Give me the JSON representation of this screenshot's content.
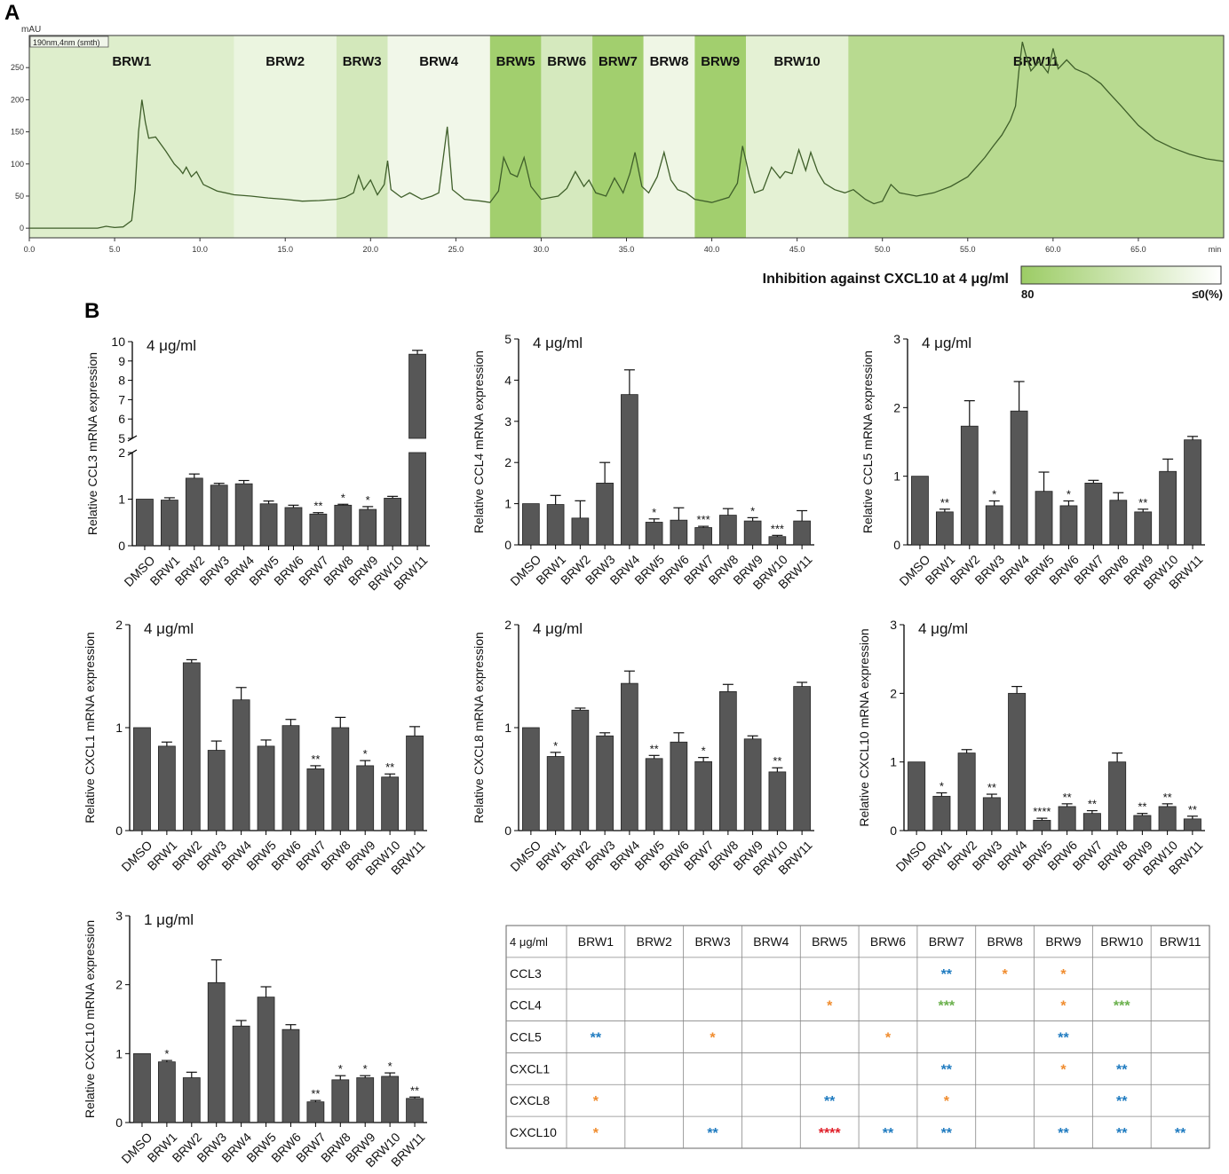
{
  "panel_labels": [
    "A",
    "B"
  ],
  "colors": {
    "bar": "#575757",
    "trace": "#3f5f2a",
    "green_dark": "#9ccc65",
    "green_light": "#f4f9ee",
    "sig_blue": "#1f7bc0",
    "sig_orange": "#f08c2e",
    "sig_green": "#6ab04c",
    "sig_red": "#e0202a"
  },
  "chart_data": [
    {
      "id": "chromatogram",
      "type": "line",
      "ylabel": "mAU",
      "xlabel": "min",
      "detector_label": "190nm,4nm (smth)",
      "xlim": [
        0,
        70
      ],
      "ylim": [
        -15,
        300
      ],
      "x_ticks": [
        "0.0",
        "5.0",
        "10.0",
        "15.0",
        "20.0",
        "25.0",
        "30.0",
        "35.0",
        "40.0",
        "45.0",
        "50.0",
        "55.0",
        "60.0",
        "65.0"
      ],
      "y_ticks": [
        "0",
        "50",
        "100",
        "150",
        "200",
        "250"
      ],
      "fractions": [
        {
          "name": "BRW1",
          "start": 0,
          "end": 12,
          "inhibition": 20
        },
        {
          "name": "BRW2",
          "start": 12,
          "end": 18,
          "inhibition": 8
        },
        {
          "name": "BRW3",
          "start": 18,
          "end": 21,
          "inhibition": 30
        },
        {
          "name": "BRW4",
          "start": 21,
          "end": 27,
          "inhibition": 3
        },
        {
          "name": "BRW5",
          "start": 27,
          "end": 30,
          "inhibition": 75
        },
        {
          "name": "BRW6",
          "start": 30,
          "end": 33,
          "inhibition": 28
        },
        {
          "name": "BRW7",
          "start": 33,
          "end": 36,
          "inhibition": 75
        },
        {
          "name": "BRW8",
          "start": 36,
          "end": 39,
          "inhibition": 5
        },
        {
          "name": "BRW9",
          "start": 39,
          "end": 42,
          "inhibition": 75
        },
        {
          "name": "BRW10",
          "start": 42,
          "end": 48,
          "inhibition": 15
        },
        {
          "name": "BRW11",
          "start": 48,
          "end": 70,
          "inhibition": 55
        }
      ],
      "trace": [
        [
          0,
          0
        ],
        [
          2,
          0
        ],
        [
          4,
          0
        ],
        [
          4.5,
          3
        ],
        [
          5,
          1
        ],
        [
          5.5,
          2
        ],
        [
          6,
          12
        ],
        [
          6.2,
          60
        ],
        [
          6.4,
          150
        ],
        [
          6.6,
          200
        ],
        [
          6.8,
          165
        ],
        [
          7,
          140
        ],
        [
          7.4,
          142
        ],
        [
          8,
          120
        ],
        [
          8.5,
          100
        ],
        [
          8.8,
          92
        ],
        [
          9,
          85
        ],
        [
          9.2,
          95
        ],
        [
          9.5,
          80
        ],
        [
          9.8,
          88
        ],
        [
          10.2,
          68
        ],
        [
          11,
          58
        ],
        [
          12,
          52
        ],
        [
          13,
          50
        ],
        [
          14,
          47
        ],
        [
          15,
          45
        ],
        [
          16,
          42
        ],
        [
          17,
          43
        ],
        [
          18,
          45
        ],
        [
          18.5,
          48
        ],
        [
          19,
          55
        ],
        [
          19.3,
          82
        ],
        [
          19.6,
          60
        ],
        [
          20,
          75
        ],
        [
          20.4,
          52
        ],
        [
          20.8,
          68
        ],
        [
          21,
          105
        ],
        [
          21.2,
          60
        ],
        [
          21.8,
          48
        ],
        [
          22.3,
          55
        ],
        [
          23,
          45
        ],
        [
          23.6,
          50
        ],
        [
          24,
          55
        ],
        [
          24.5,
          158
        ],
        [
          24.8,
          60
        ],
        [
          25.5,
          45
        ],
        [
          26.5,
          42
        ],
        [
          27,
          40
        ],
        [
          27.5,
          58
        ],
        [
          27.8,
          110
        ],
        [
          28.2,
          85
        ],
        [
          28.6,
          80
        ],
        [
          29,
          110
        ],
        [
          29.4,
          65
        ],
        [
          30,
          45
        ],
        [
          30.6,
          48
        ],
        [
          31,
          50
        ],
        [
          31.5,
          62
        ],
        [
          32,
          88
        ],
        [
          32.5,
          65
        ],
        [
          32.8,
          75
        ],
        [
          33.2,
          55
        ],
        [
          33.8,
          50
        ],
        [
          34.3,
          78
        ],
        [
          34.8,
          55
        ],
        [
          35.2,
          85
        ],
        [
          35.5,
          118
        ],
        [
          35.9,
          65
        ],
        [
          36.3,
          55
        ],
        [
          36.8,
          80
        ],
        [
          37.2,
          118
        ],
        [
          37.6,
          75
        ],
        [
          38,
          60
        ],
        [
          38.5,
          55
        ],
        [
          39,
          45
        ],
        [
          40,
          40
        ],
        [
          41,
          48
        ],
        [
          41.5,
          70
        ],
        [
          41.8,
          128
        ],
        [
          42.2,
          82
        ],
        [
          42.5,
          55
        ],
        [
          43,
          60
        ],
        [
          43.5,
          95
        ],
        [
          44,
          78
        ],
        [
          44.3,
          88
        ],
        [
          44.7,
          85
        ],
        [
          45.1,
          122
        ],
        [
          45.5,
          90
        ],
        [
          45.8,
          118
        ],
        [
          46.2,
          88
        ],
        [
          46.6,
          70
        ],
        [
          47.2,
          60
        ],
        [
          47.8,
          55
        ],
        [
          48.3,
          60
        ],
        [
          49,
          45
        ],
        [
          49.5,
          38
        ],
        [
          50,
          42
        ],
        [
          50.5,
          68
        ],
        [
          51,
          55
        ],
        [
          52,
          50
        ],
        [
          53,
          55
        ],
        [
          54,
          65
        ],
        [
          55,
          80
        ],
        [
          55.5,
          95
        ],
        [
          56,
          110
        ],
        [
          56.5,
          128
        ],
        [
          57,
          145
        ],
        [
          57.5,
          168
        ],
        [
          57.8,
          190
        ],
        [
          58,
          245
        ],
        [
          58.2,
          290
        ],
        [
          58.4,
          270
        ],
        [
          58.7,
          245
        ],
        [
          59.2,
          260
        ],
        [
          59.7,
          242
        ],
        [
          60,
          280
        ],
        [
          60.3,
          248
        ],
        [
          60.8,
          262
        ],
        [
          61.3,
          248
        ],
        [
          62,
          240
        ],
        [
          62.8,
          225
        ],
        [
          63.3,
          210
        ],
        [
          64,
          190
        ],
        [
          65,
          160
        ],
        [
          66,
          138
        ],
        [
          67,
          125
        ],
        [
          68,
          115
        ],
        [
          69,
          108
        ],
        [
          70,
          104
        ]
      ]
    },
    {
      "id": "ccl3-4ug",
      "type": "bar",
      "annotation": "4 μg/ml",
      "ylabel": "Relative CCL3 mRNA expression",
      "categories": [
        "DMSO",
        "BRW1",
        "BRW2",
        "BRW3",
        "BRW4",
        "BRW5",
        "BRW6",
        "BRW7",
        "BRW8",
        "BRW9",
        "BRW10",
        "BRW11"
      ],
      "values": [
        1.0,
        0.98,
        1.45,
        1.3,
        1.33,
        0.9,
        0.82,
        0.68,
        0.87,
        0.78,
        1.02,
        9.35
      ],
      "errors": [
        0.0,
        0.05,
        0.09,
        0.04,
        0.07,
        0.06,
        0.05,
        0.03,
        0.02,
        0.06,
        0.04,
        0.2
      ],
      "significance": [
        "",
        "",
        "",
        "",
        "",
        "",
        "",
        "**",
        "*",
        "*",
        "",
        ""
      ],
      "broken_axis": true,
      "y_ticks_lower": [
        "0",
        "1",
        "2"
      ],
      "y_ticks_upper": [
        "5",
        "6",
        "7",
        "8",
        "9",
        "10"
      ]
    },
    {
      "id": "ccl4-4ug",
      "type": "bar",
      "annotation": "4 μg/ml",
      "ylabel": "Relative CCL4 mRNA expression",
      "ylim": [
        0,
        5
      ],
      "y_ticks": [
        "0",
        "1",
        "2",
        "3",
        "4",
        "5"
      ],
      "categories": [
        "DMSO",
        "BRW1",
        "BRW2",
        "BRW3",
        "BRW4",
        "BRW5",
        "BRW6",
        "BRW7",
        "BRW8",
        "BRW9",
        "BRW10",
        "BRW11"
      ],
      "values": [
        1.0,
        0.98,
        0.65,
        1.5,
        3.65,
        0.55,
        0.6,
        0.42,
        0.72,
        0.58,
        0.2,
        0.58
      ],
      "errors": [
        0.0,
        0.22,
        0.42,
        0.5,
        0.6,
        0.08,
        0.3,
        0.03,
        0.16,
        0.08,
        0.03,
        0.25
      ],
      "significance": [
        "",
        "",
        "",
        "",
        "",
        "*",
        "",
        "***",
        "",
        "*",
        "***",
        ""
      ]
    },
    {
      "id": "ccl5-4ug",
      "type": "bar",
      "annotation": "4 μg/ml",
      "ylabel": "Relative CCL5 mRNA expression",
      "ylim": [
        0,
        3
      ],
      "y_ticks": [
        "0",
        "1",
        "2",
        "3"
      ],
      "categories": [
        "DMSO",
        "BRW1",
        "BRW2",
        "BRW3",
        "BRW4",
        "BRW5",
        "BRW6",
        "BRW7",
        "BRW8",
        "BRW9",
        "BRW10",
        "BRW11"
      ],
      "values": [
        1.0,
        0.48,
        1.73,
        0.57,
        1.95,
        0.78,
        0.57,
        0.9,
        0.65,
        0.48,
        1.07,
        1.53
      ],
      "errors": [
        0.0,
        0.04,
        0.37,
        0.07,
        0.43,
        0.28,
        0.07,
        0.04,
        0.11,
        0.04,
        0.18,
        0.05
      ],
      "significance": [
        "",
        "**",
        "",
        "*",
        "",
        "",
        "*",
        "",
        "",
        "**",
        "",
        ""
      ]
    },
    {
      "id": "cxcl1-4ug",
      "type": "bar",
      "annotation": "4 μg/ml",
      "ylabel": "Relative CXCL1 mRNA expression",
      "ylim": [
        0,
        2
      ],
      "y_ticks": [
        "0",
        "1",
        "2"
      ],
      "categories": [
        "DMSO",
        "BRW1",
        "BRW2",
        "BRW3",
        "BRW4",
        "BRW5",
        "BRW6",
        "BRW7",
        "BRW8",
        "BRW9",
        "BRW10",
        "BRW11"
      ],
      "values": [
        1.0,
        0.82,
        1.63,
        0.78,
        1.27,
        0.82,
        1.02,
        0.6,
        1.0,
        0.63,
        0.52,
        0.92
      ],
      "errors": [
        0.0,
        0.04,
        0.03,
        0.09,
        0.12,
        0.06,
        0.06,
        0.03,
        0.1,
        0.05,
        0.03,
        0.09
      ],
      "significance": [
        "",
        "",
        "",
        "",
        "",
        "",
        "",
        "**",
        "",
        "*",
        "**",
        ""
      ]
    },
    {
      "id": "cxcl8-4ug",
      "type": "bar",
      "annotation": "4 μg/ml",
      "ylabel": "Relative CXCL8 mRNA expression",
      "ylim": [
        0,
        2
      ],
      "y_ticks": [
        "0",
        "1",
        "2"
      ],
      "categories": [
        "DMSO",
        "BRW1",
        "BRW2",
        "BRW3",
        "BRW4",
        "BRW5",
        "BRW6",
        "BRW7",
        "BRW8",
        "BRW9",
        "BRW10",
        "BRW11"
      ],
      "values": [
        1.0,
        0.72,
        1.17,
        0.92,
        1.43,
        0.7,
        0.86,
        0.67,
        1.35,
        0.89,
        0.57,
        1.4
      ],
      "errors": [
        0.0,
        0.04,
        0.02,
        0.03,
        0.12,
        0.03,
        0.09,
        0.04,
        0.07,
        0.03,
        0.04,
        0.04
      ],
      "significance": [
        "",
        "*",
        "",
        "",
        "",
        "**",
        "",
        "*",
        "",
        "",
        "**",
        ""
      ]
    },
    {
      "id": "cxcl10-4ug",
      "type": "bar",
      "annotation": "4 μg/ml",
      "ylabel": "Relative CXCL10 mRNA expression",
      "ylim": [
        0,
        3
      ],
      "y_ticks": [
        "0",
        "1",
        "2",
        "3"
      ],
      "categories": [
        "DMSO",
        "BRW1",
        "BRW2",
        "BRW3",
        "BRW4",
        "BRW5",
        "BRW6",
        "BRW7",
        "BRW8",
        "BRW9",
        "BRW10",
        "BRW11"
      ],
      "values": [
        1.0,
        0.5,
        1.13,
        0.48,
        2.0,
        0.15,
        0.35,
        0.25,
        1.0,
        0.22,
        0.35,
        0.17
      ],
      "errors": [
        0.0,
        0.05,
        0.05,
        0.05,
        0.1,
        0.03,
        0.04,
        0.04,
        0.13,
        0.03,
        0.04,
        0.04
      ],
      "significance": [
        "",
        "*",
        "",
        "**",
        "",
        "****",
        "**",
        "**",
        "",
        "**",
        "**",
        "**"
      ]
    },
    {
      "id": "cxcl10-1ug",
      "type": "bar",
      "annotation": "1 μg/ml",
      "ylabel": "Relative CXCL10 mRNA expression",
      "ylim": [
        0,
        3
      ],
      "y_ticks": [
        "0",
        "1",
        "2",
        "3"
      ],
      "categories": [
        "DMSO",
        "BRW1",
        "BRW2",
        "BRW3",
        "BRW4",
        "BRW5",
        "BRW6",
        "BRW7",
        "BRW8",
        "BRW9",
        "BRW10",
        "BRW11"
      ],
      "values": [
        1.0,
        0.88,
        0.65,
        2.03,
        1.4,
        1.82,
        1.35,
        0.3,
        0.62,
        0.65,
        0.67,
        0.35
      ],
      "errors": [
        0.0,
        0.02,
        0.08,
        0.33,
        0.08,
        0.15,
        0.07,
        0.02,
        0.06,
        0.03,
        0.05,
        0.02
      ],
      "significance": [
        "",
        "*",
        "",
        "",
        "",
        "",
        "",
        "**",
        "*",
        "*",
        "*",
        "**"
      ]
    }
  ],
  "inhibition_scale": {
    "title": "Inhibition against CXCL10 at 4 μg/ml",
    "min_label": "≤0(%)",
    "max_label": "80"
  },
  "summary_table": {
    "corner": "4 μg/ml",
    "columns": [
      "BRW1",
      "BRW2",
      "BRW3",
      "BRW4",
      "BRW5",
      "BRW6",
      "BRW7",
      "BRW8",
      "BRW9",
      "BRW10",
      "BRW11"
    ],
    "rows": [
      {
        "label": "CCL3",
        "cells": [
          "",
          "",
          "",
          "",
          "",
          "",
          "**",
          "*",
          "*",
          "",
          ""
        ]
      },
      {
        "label": "CCL4",
        "cells": [
          "",
          "",
          "",
          "",
          "*",
          "",
          "***",
          "",
          "*",
          "***",
          ""
        ]
      },
      {
        "label": "CCL5",
        "cells": [
          "**",
          "",
          "*",
          "",
          "",
          "*",
          "",
          "",
          "**",
          "",
          ""
        ]
      },
      {
        "label": "CXCL1",
        "cells": [
          "",
          "",
          "",
          "",
          "",
          "",
          "**",
          "",
          "*",
          "**",
          ""
        ]
      },
      {
        "label": "CXCL8",
        "cells": [
          "*",
          "",
          "",
          "",
          "**",
          "",
          "*",
          "",
          "",
          "**",
          ""
        ]
      },
      {
        "label": "CXCL10",
        "cells": [
          "*",
          "",
          "**",
          "",
          "****",
          "**",
          "**",
          "",
          "**",
          "**",
          "**"
        ]
      }
    ]
  }
}
